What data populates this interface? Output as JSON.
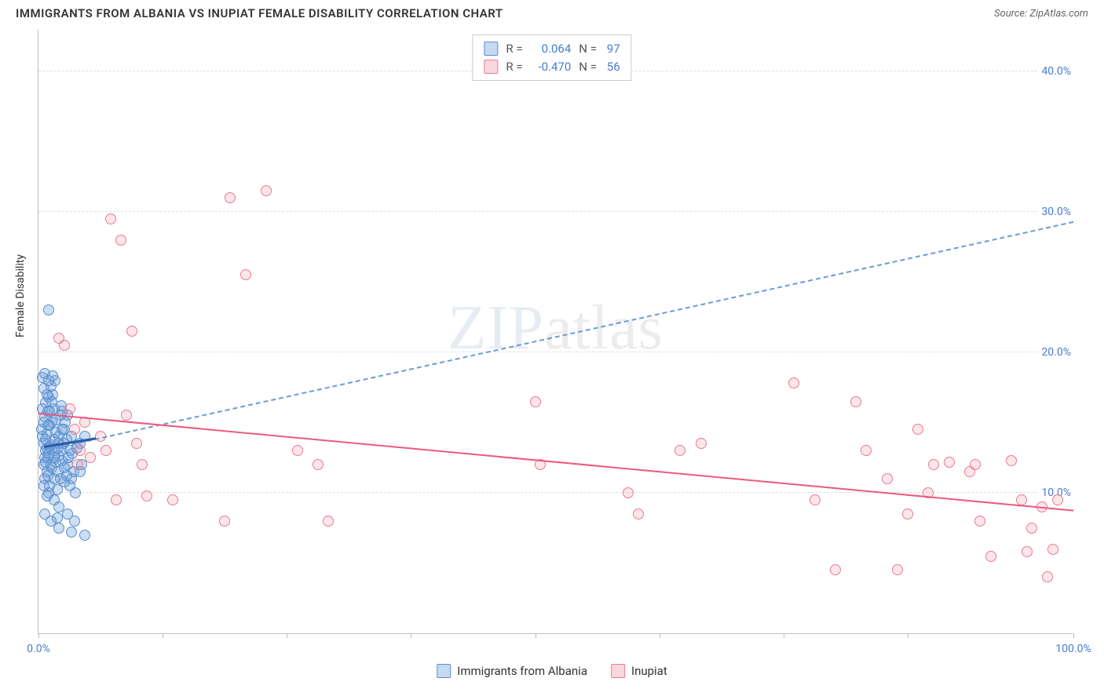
{
  "title": "IMMIGRANTS FROM ALBANIA VS INUPIAT FEMALE DISABILITY CORRELATION CHART",
  "source_label": "Source: ZipAtlas.com",
  "ylabel": "Female Disability",
  "watermark_bold": "ZIP",
  "watermark_light": "atlas",
  "chart": {
    "type": "scatter",
    "xlim": [
      0,
      100
    ],
    "ylim": [
      0,
      43
    ],
    "yticks": [
      10,
      20,
      30,
      40
    ],
    "ytick_labels": [
      "10.0%",
      "20.0%",
      "30.0%",
      "40.0%"
    ],
    "xticks": [
      0,
      12,
      24,
      36,
      48,
      60,
      72,
      84,
      100
    ],
    "xtick_labels_shown": {
      "0": "0.0%",
      "100": "100.0%"
    },
    "background_color": "#ffffff",
    "grid_color": "#dddddd",
    "axis_color": "#bbbbbb",
    "tick_label_color": "#4a7bd0",
    "series": [
      {
        "name": "Immigrants from Albania",
        "color_fill": "rgba(110,160,220,0.35)",
        "color_stroke": "#5a8ecb",
        "marker_radius": 7,
        "stats": {
          "R": "0.064",
          "N": "97"
        },
        "trend": {
          "style": "dashed",
          "color": "#6a9bd8",
          "x1": 1,
          "y1": 13.0,
          "x2": 100,
          "y2": 29.2
        },
        "short_trend": {
          "x1": 0.5,
          "y1": 13.2,
          "x2": 5.5,
          "y2": 13.8,
          "color": "#2d5aa8"
        },
        "points": [
          [
            0.5,
            12.0
          ],
          [
            0.6,
            12.5
          ],
          [
            0.7,
            13.0
          ],
          [
            0.8,
            13.2
          ],
          [
            0.5,
            13.5
          ],
          [
            0.6,
            11.0
          ],
          [
            1.0,
            12.8
          ],
          [
            1.2,
            13.4
          ],
          [
            0.4,
            14.0
          ],
          [
            0.8,
            14.2
          ],
          [
            1.1,
            14.8
          ],
          [
            1.3,
            15.0
          ],
          [
            0.6,
            15.4
          ],
          [
            0.9,
            15.8
          ],
          [
            1.5,
            16.0
          ],
          [
            0.7,
            16.4
          ],
          [
            1.0,
            16.8
          ],
          [
            1.4,
            17.0
          ],
          [
            0.5,
            17.4
          ],
          [
            1.2,
            17.6
          ],
          [
            1.6,
            18.0
          ],
          [
            0.8,
            11.5
          ],
          [
            1.3,
            11.8
          ],
          [
            1.7,
            12.2
          ],
          [
            2.0,
            12.6
          ],
          [
            2.2,
            13.0
          ],
          [
            2.4,
            13.5
          ],
          [
            2.0,
            14.0
          ],
          [
            2.3,
            14.5
          ],
          [
            2.6,
            15.0
          ],
          [
            2.1,
            15.5
          ],
          [
            2.8,
            12.0
          ],
          [
            3.0,
            13.0
          ],
          [
            3.2,
            14.0
          ],
          [
            3.4,
            11.5
          ],
          [
            1.8,
            10.2
          ],
          [
            2.5,
            10.8
          ],
          [
            3.0,
            10.5
          ],
          [
            1.0,
            10.0
          ],
          [
            1.5,
            9.5
          ],
          [
            2.0,
            9.0
          ],
          [
            2.8,
            8.5
          ],
          [
            3.5,
            8.0
          ],
          [
            1.8,
            8.2
          ],
          [
            0.8,
            9.8
          ],
          [
            0.6,
            8.5
          ],
          [
            1.2,
            8.0
          ],
          [
            0.4,
            18.2
          ],
          [
            0.6,
            18.5
          ],
          [
            1.0,
            18.0
          ],
          [
            1.4,
            18.3
          ],
          [
            0.9,
            12.5
          ],
          [
            1.1,
            13.3
          ],
          [
            1.7,
            14.3
          ],
          [
            2.3,
            12.3
          ],
          [
            2.7,
            13.8
          ],
          [
            0.3,
            14.5
          ],
          [
            0.5,
            15.0
          ],
          [
            0.7,
            12.2
          ],
          [
            0.9,
            11.2
          ],
          [
            1.1,
            10.5
          ],
          [
            1.5,
            11.0
          ],
          [
            1.9,
            11.5
          ],
          [
            2.1,
            11.0
          ],
          [
            2.5,
            11.8
          ],
          [
            2.9,
            12.5
          ],
          [
            3.3,
            12.8
          ],
          [
            3.7,
            13.2
          ],
          [
            4.0,
            13.5
          ],
          [
            4.2,
            12.0
          ],
          [
            4.5,
            14.0
          ],
          [
            1.3,
            16.5
          ],
          [
            1.7,
            15.2
          ],
          [
            2.2,
            16.2
          ],
          [
            0.4,
            16.0
          ],
          [
            0.8,
            17.0
          ],
          [
            1.5,
            13.8
          ],
          [
            2.0,
            7.5
          ],
          [
            3.2,
            7.2
          ],
          [
            4.5,
            7.0
          ],
          [
            1.0,
            23.0
          ],
          [
            0.5,
            10.5
          ],
          [
            0.9,
            14.8
          ],
          [
            1.2,
            12.0
          ],
          [
            1.6,
            13.0
          ],
          [
            2.0,
            13.5
          ],
          [
            2.4,
            14.5
          ],
          [
            2.8,
            15.5
          ],
          [
            3.2,
            11.0
          ],
          [
            3.6,
            10.0
          ],
          [
            4.0,
            11.5
          ],
          [
            0.7,
            13.8
          ],
          [
            1.1,
            15.8
          ],
          [
            1.5,
            12.5
          ],
          [
            1.9,
            13.2
          ],
          [
            2.3,
            15.8
          ],
          [
            2.7,
            11.2
          ]
        ]
      },
      {
        "name": "Inupiat",
        "color_fill": "rgba(240,140,160,0.22)",
        "color_stroke": "#e87a94",
        "marker_radius": 7,
        "stats": {
          "R": "-0.470",
          "N": "56"
        },
        "trend": {
          "style": "solid",
          "color": "#ec5a7e",
          "x1": 0,
          "y1": 15.6,
          "x2": 100,
          "y2": 8.7
        },
        "points": [
          [
            2.0,
            21.0
          ],
          [
            3.5,
            14.5
          ],
          [
            3.0,
            16.0
          ],
          [
            4.0,
            13.0
          ],
          [
            5.0,
            12.5
          ],
          [
            7.0,
            29.5
          ],
          [
            8.0,
            28.0
          ],
          [
            9.0,
            21.5
          ],
          [
            8.5,
            15.5
          ],
          [
            10.0,
            12.0
          ],
          [
            7.5,
            9.5
          ],
          [
            10.5,
            9.8
          ],
          [
            13.0,
            9.5
          ],
          [
            9.5,
            13.5
          ],
          [
            18.0,
            8.0
          ],
          [
            18.5,
            31.0
          ],
          [
            20.0,
            25.5
          ],
          [
            22.0,
            31.5
          ],
          [
            25.0,
            13.0
          ],
          [
            27.0,
            12.0
          ],
          [
            28.0,
            8.0
          ],
          [
            48.0,
            16.5
          ],
          [
            48.5,
            12.0
          ],
          [
            57.0,
            10.0
          ],
          [
            58.0,
            8.5
          ],
          [
            62.0,
            13.0
          ],
          [
            64.0,
            13.5
          ],
          [
            73.0,
            17.8
          ],
          [
            75.0,
            9.5
          ],
          [
            77.0,
            4.5
          ],
          [
            79.0,
            16.5
          ],
          [
            80.0,
            13.0
          ],
          [
            82.0,
            11.0
          ],
          [
            83.0,
            4.5
          ],
          [
            84.0,
            8.5
          ],
          [
            85.0,
            14.5
          ],
          [
            86.0,
            10.0
          ],
          [
            86.5,
            12.0
          ],
          [
            88.0,
            12.2
          ],
          [
            90.0,
            11.5
          ],
          [
            90.5,
            12.0
          ],
          [
            91.0,
            8.0
          ],
          [
            92.0,
            5.5
          ],
          [
            94.0,
            12.3
          ],
          [
            95.0,
            9.5
          ],
          [
            95.5,
            5.8
          ],
          [
            96.0,
            7.5
          ],
          [
            97.0,
            9.0
          ],
          [
            97.5,
            4.0
          ],
          [
            98.0,
            6.0
          ],
          [
            98.5,
            9.5
          ],
          [
            2.5,
            20.5
          ],
          [
            4.5,
            15.0
          ],
          [
            6.0,
            14.0
          ],
          [
            6.5,
            13.0
          ],
          [
            3.8,
            12.0
          ]
        ]
      }
    ]
  }
}
